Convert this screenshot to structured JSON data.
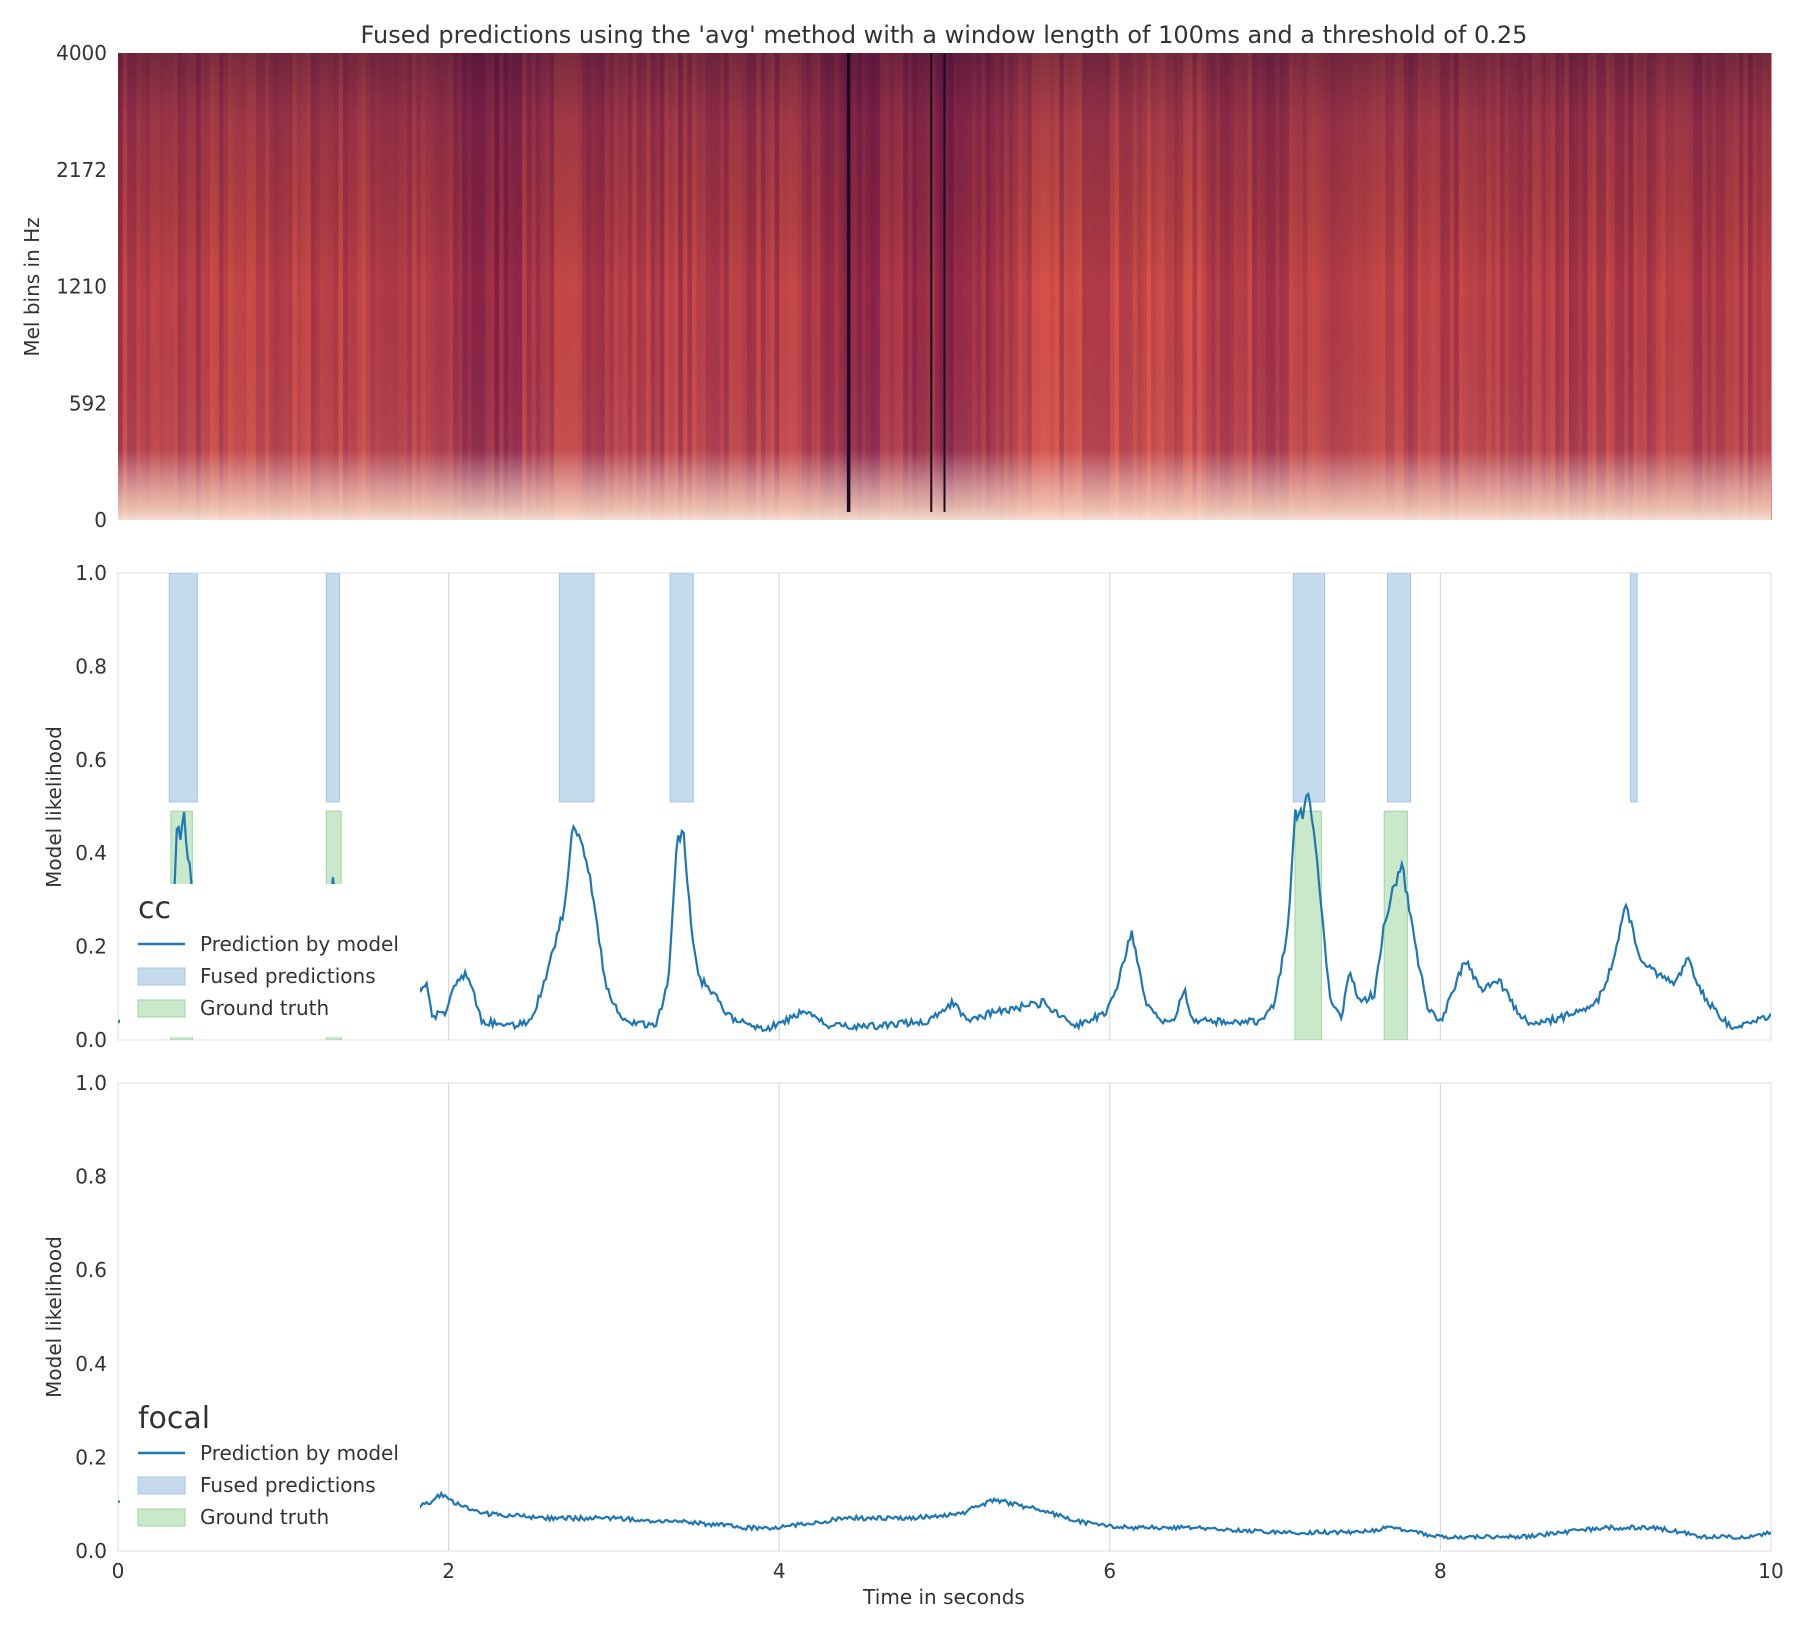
{
  "title": "Fused predictions using the 'avg' method with a window length of 100ms and a threshold of 0.25",
  "colors": {
    "prediction": "#1f77b4",
    "fused": "#a6c6e3",
    "ground_truth": "#9fd59f",
    "grid": "#d9d9d9",
    "spine": "#dddddd",
    "text": "#333333"
  },
  "chart_data": [
    {
      "type": "heatmap",
      "name": "spectrogram",
      "ylabel": "Mel bins in Hz",
      "yticks": [
        "4000",
        "2172",
        "1210",
        "592",
        "0"
      ],
      "colormap": "rocket",
      "dark_bands_seconds": [
        2.2,
        4.45,
        5.0
      ],
      "vertical_lines_seconds": [
        4.42,
        4.92,
        5.0
      ]
    },
    {
      "type": "line",
      "name": "cc",
      "panel_label": "cc",
      "ylabel": "Model likelihood",
      "ylim": [
        0.0,
        1.0
      ],
      "xlim": [
        0,
        10
      ],
      "yticks": [
        "0.0",
        "0.2",
        "0.4",
        "0.6",
        "0.8",
        "1.0"
      ],
      "grid": true,
      "legend": {
        "placement": "lower-left",
        "entries": [
          "Prediction by model",
          "Fused predictions",
          "Ground truth"
        ]
      },
      "fused_predictions": [
        [
          0.31,
          0.48
        ],
        [
          1.26,
          1.34
        ],
        [
          2.67,
          2.88
        ],
        [
          3.34,
          3.48
        ],
        [
          7.11,
          7.3
        ],
        [
          7.68,
          7.82
        ],
        [
          9.15,
          9.19
        ]
      ],
      "ground_truth": [
        [
          0.32,
          0.45
        ],
        [
          1.26,
          1.35
        ],
        [
          7.12,
          7.28
        ],
        [
          7.66,
          7.8
        ]
      ],
      "fused_band": [
        0.51,
        1.0
      ],
      "truth_band": [
        0.0,
        0.49
      ],
      "prediction_keypoints": [
        [
          0.0,
          0.04
        ],
        [
          0.1,
          0.02
        ],
        [
          0.3,
          0.05
        ],
        [
          0.34,
          0.3
        ],
        [
          0.36,
          0.48
        ],
        [
          0.38,
          0.42
        ],
        [
          0.4,
          0.49
        ],
        [
          0.42,
          0.4
        ],
        [
          0.45,
          0.33
        ],
        [
          0.5,
          0.15
        ],
        [
          0.6,
          0.06
        ],
        [
          0.8,
          0.04
        ],
        [
          1.0,
          0.04
        ],
        [
          1.2,
          0.05
        ],
        [
          1.3,
          0.34
        ],
        [
          1.4,
          0.1
        ],
        [
          1.6,
          0.06
        ],
        [
          1.87,
          0.12
        ],
        [
          1.9,
          0.05
        ],
        [
          1.98,
          0.06
        ],
        [
          2.05,
          0.13
        ],
        [
          2.12,
          0.14
        ],
        [
          2.2,
          0.04
        ],
        [
          2.4,
          0.03
        ],
        [
          2.5,
          0.04
        ],
        [
          2.6,
          0.15
        ],
        [
          2.7,
          0.28
        ],
        [
          2.75,
          0.46
        ],
        [
          2.8,
          0.43
        ],
        [
          2.85,
          0.36
        ],
        [
          2.95,
          0.12
        ],
        [
          3.05,
          0.04
        ],
        [
          3.25,
          0.03
        ],
        [
          3.33,
          0.12
        ],
        [
          3.38,
          0.42
        ],
        [
          3.42,
          0.44
        ],
        [
          3.48,
          0.2
        ],
        [
          3.52,
          0.13
        ],
        [
          3.58,
          0.11
        ],
        [
          3.7,
          0.05
        ],
        [
          3.9,
          0.02
        ],
        [
          4.15,
          0.06
        ],
        [
          4.3,
          0.03
        ],
        [
          4.6,
          0.03
        ],
        [
          4.9,
          0.04
        ],
        [
          5.05,
          0.08
        ],
        [
          5.15,
          0.04
        ],
        [
          5.3,
          0.06
        ],
        [
          5.6,
          0.08
        ],
        [
          5.8,
          0.03
        ],
        [
          5.98,
          0.06
        ],
        [
          6.05,
          0.12
        ],
        [
          6.13,
          0.23
        ],
        [
          6.22,
          0.08
        ],
        [
          6.3,
          0.04
        ],
        [
          6.4,
          0.05
        ],
        [
          6.45,
          0.11
        ],
        [
          6.5,
          0.04
        ],
        [
          6.7,
          0.04
        ],
        [
          6.9,
          0.04
        ],
        [
          7.0,
          0.08
        ],
        [
          7.08,
          0.25
        ],
        [
          7.12,
          0.49
        ],
        [
          7.17,
          0.48
        ],
        [
          7.2,
          0.53
        ],
        [
          7.25,
          0.4
        ],
        [
          7.33,
          0.09
        ],
        [
          7.4,
          0.05
        ],
        [
          7.45,
          0.14
        ],
        [
          7.52,
          0.08
        ],
        [
          7.6,
          0.1
        ],
        [
          7.66,
          0.25
        ],
        [
          7.72,
          0.33
        ],
        [
          7.77,
          0.37
        ],
        [
          7.85,
          0.2
        ],
        [
          7.92,
          0.07
        ],
        [
          8.0,
          0.04
        ],
        [
          8.05,
          0.08
        ],
        [
          8.15,
          0.17
        ],
        [
          8.25,
          0.11
        ],
        [
          8.35,
          0.13
        ],
        [
          8.45,
          0.07
        ],
        [
          8.55,
          0.03
        ],
        [
          8.75,
          0.05
        ],
        [
          8.95,
          0.08
        ],
        [
          9.05,
          0.17
        ],
        [
          9.12,
          0.3
        ],
        [
          9.2,
          0.18
        ],
        [
          9.3,
          0.14
        ],
        [
          9.4,
          0.12
        ],
        [
          9.5,
          0.17
        ],
        [
          9.6,
          0.09
        ],
        [
          9.75,
          0.03
        ],
        [
          9.9,
          0.04
        ],
        [
          10.0,
          0.05
        ]
      ]
    },
    {
      "type": "line",
      "name": "focal",
      "panel_label": "focal",
      "ylabel": "Model likelihood",
      "xlabel": "Time in seconds",
      "ylim": [
        0.0,
        1.0
      ],
      "xlim": [
        0,
        10
      ],
      "xticks": [
        "0",
        "2",
        "4",
        "6",
        "8",
        "10"
      ],
      "yticks": [
        "0.0",
        "0.2",
        "0.4",
        "0.6",
        "0.8",
        "1.0"
      ],
      "grid": true,
      "legend": {
        "placement": "lower-left",
        "entries": [
          "Prediction by model",
          "Fused predictions",
          "Ground truth"
        ]
      },
      "prediction_keypoints": [
        [
          0.0,
          0.11
        ],
        [
          0.1,
          0.11
        ],
        [
          0.5,
          0.08
        ],
        [
          1.0,
          0.07
        ],
        [
          1.5,
          0.07
        ],
        [
          1.87,
          0.1
        ],
        [
          1.95,
          0.12
        ],
        [
          2.05,
          0.1
        ],
        [
          2.2,
          0.08
        ],
        [
          2.6,
          0.07
        ],
        [
          3.0,
          0.07
        ],
        [
          3.5,
          0.06
        ],
        [
          3.8,
          0.05
        ],
        [
          4.0,
          0.05
        ],
        [
          4.4,
          0.07
        ],
        [
          4.8,
          0.07
        ],
        [
          5.1,
          0.08
        ],
        [
          5.3,
          0.11
        ],
        [
          5.55,
          0.09
        ],
        [
          5.85,
          0.06
        ],
        [
          6.1,
          0.05
        ],
        [
          6.5,
          0.05
        ],
        [
          7.0,
          0.04
        ],
        [
          7.5,
          0.04
        ],
        [
          7.7,
          0.05
        ],
        [
          8.0,
          0.03
        ],
        [
          8.5,
          0.03
        ],
        [
          9.0,
          0.05
        ],
        [
          9.3,
          0.05
        ],
        [
          9.6,
          0.03
        ],
        [
          9.9,
          0.03
        ],
        [
          10.0,
          0.04
        ]
      ]
    }
  ]
}
